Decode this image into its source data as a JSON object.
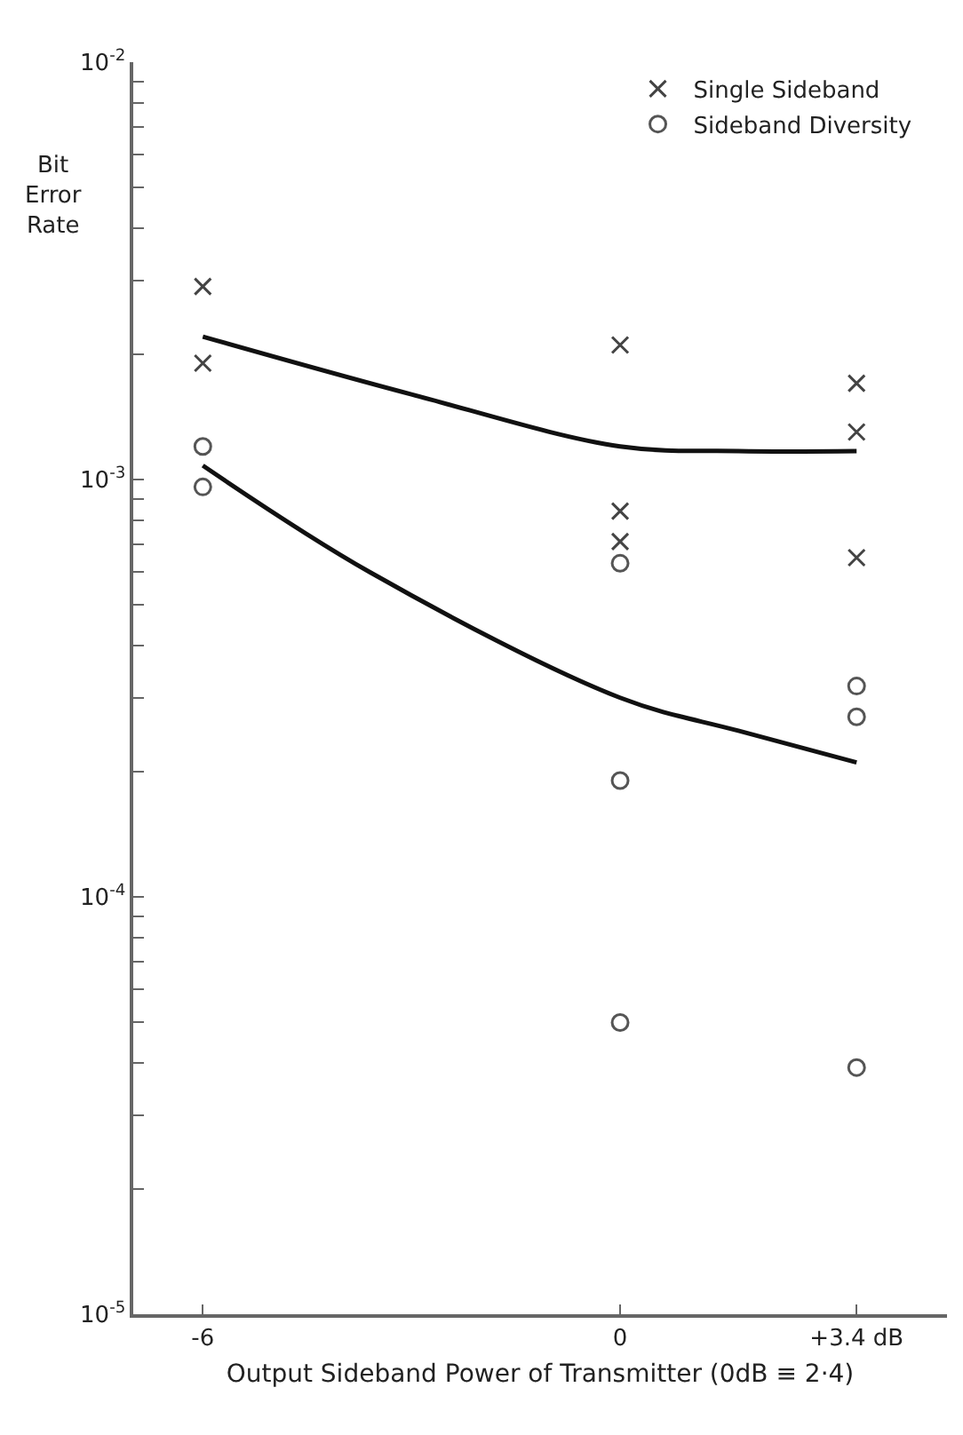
{
  "chart_data": {
    "type": "scatter",
    "xlabel": "Output Sideband Power of Transmitter (0dB ≡ 2·4)",
    "ylabel": "Bit Error Rate",
    "log": "y",
    "xlim": [
      -7,
      4.7
    ],
    "ylim": [
      1e-05,
      0.01
    ],
    "xticks": [
      -6,
      0,
      {
        "value": 3.4,
        "label": "+3.4 dB"
      }
    ],
    "yticks": [
      {
        "value": 1e-05,
        "label": "10$^{-5}$"
      },
      {
        "value": 2e-05,
        "label": null
      },
      {
        "value": 3e-05,
        "label": null
      },
      {
        "value": 4e-05,
        "label": null
      },
      {
        "value": 5e-05,
        "label": null
      },
      {
        "value": 6e-05,
        "label": null
      },
      {
        "value": 7e-05,
        "label": null
      },
      {
        "value": 8e-05,
        "label": null
      },
      {
        "value": 9e-05,
        "label": null
      },
      {
        "value": 0.0001,
        "label": "10$^{-4}$"
      },
      {
        "value": 0.0002,
        "label": null
      },
      {
        "value": 0.0003,
        "label": null
      },
      {
        "value": 0.0004,
        "label": null
      },
      {
        "value": 0.0005,
        "label": null
      },
      {
        "value": 0.0006,
        "label": null
      },
      {
        "value": 0.0007,
        "label": null
      },
      {
        "value": 0.0008,
        "label": null
      },
      {
        "value": 0.0009,
        "label": null
      },
      {
        "value": 0.001,
        "label": "10$^{-3}$"
      },
      {
        "value": 0.002,
        "label": null
      },
      {
        "value": 0.003,
        "label": null
      },
      {
        "value": 0.004,
        "label": null
      },
      {
        "value": 0.005,
        "label": null
      },
      {
        "value": 0.006,
        "label": null
      },
      {
        "value": 0.007,
        "label": null
      },
      {
        "value": 0.008,
        "label": null
      },
      {
        "value": 0.009,
        "label": null
      },
      {
        "value": 0.01,
        "label": "10$^{-2}$"
      }
    ],
    "legend": "top right",
    "series": [
      {
        "name": "Single Sideband",
        "marker": "cross",
        "color": "#444444",
        "x": [
          -6,
          -6,
          0,
          0,
          0,
          3.4,
          3.4,
          3.4
        ],
        "values": [
          0.0029,
          0.0019,
          0.0021,
          0.00084,
          0.00071,
          0.0017,
          0.0013,
          0.00065
        ]
      },
      {
        "name": "Sideband Diversity",
        "marker": "circle",
        "color": "#555555",
        "x": [
          -6,
          -6,
          0,
          0,
          0,
          3.4,
          3.4,
          3.4
        ],
        "values": [
          0.0012,
          0.00096,
          0.00063,
          0.00019,
          5e-05,
          0.00032,
          0.00027,
          3.9e-05
        ]
      },
      {
        "type": "line",
        "marker": "none",
        "color": "#111111",
        "x": [
          -6,
          -3,
          0,
          1.7,
          3.4
        ],
        "values": [
          0.0022,
          0.0016,
          0.0012,
          0.00117,
          0.00117
        ]
      },
      {
        "type": "line",
        "marker": "none",
        "color": "#111111",
        "x": [
          -6,
          -3.6,
          0,
          1.7,
          3.4
        ],
        "values": [
          0.00108,
          0.0006,
          0.0003,
          0.00025,
          0.00021
        ]
      }
    ]
  }
}
